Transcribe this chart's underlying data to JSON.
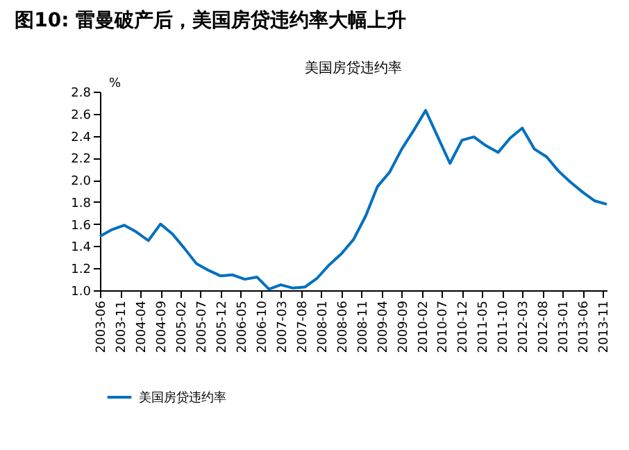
{
  "chart_data": {
    "type": "line",
    "title": "图10: 雷曼破产后，美国房贷违约率大幅上升",
    "subtitle": "美国房贷违约率",
    "ylabel": "%",
    "x": [
      "2003-06",
      "2003-09",
      "2003-12",
      "2004-03",
      "2004-06",
      "2004-09",
      "2004-12",
      "2005-03",
      "2005-06",
      "2005-09",
      "2005-12",
      "2006-03",
      "2006-06",
      "2006-09",
      "2006-12",
      "2007-03",
      "2007-06",
      "2007-09",
      "2007-12",
      "2008-03",
      "2008-06",
      "2008-09",
      "2008-12",
      "2009-03",
      "2009-06",
      "2009-09",
      "2009-12",
      "2010-03",
      "2010-06",
      "2010-09",
      "2010-12",
      "2011-03",
      "2011-06",
      "2011-09",
      "2011-12",
      "2012-03",
      "2012-06",
      "2012-09",
      "2012-12",
      "2013-03",
      "2013-06",
      "2013-09",
      "2013-12"
    ],
    "series": [
      {
        "name": "美国房贷违约率",
        "color": "#0070c0",
        "values": [
          1.49,
          1.55,
          1.59,
          1.53,
          1.45,
          1.6,
          1.51,
          1.38,
          1.24,
          1.18,
          1.13,
          1.14,
          1.1,
          1.12,
          1.01,
          1.05,
          1.02,
          1.03,
          1.11,
          1.23,
          1.33,
          1.46,
          1.67,
          1.94,
          2.07,
          2.28,
          2.45,
          2.63,
          2.39,
          2.15,
          2.36,
          2.39,
          2.31,
          2.25,
          2.38,
          2.47,
          2.28,
          2.21,
          2.08,
          1.98,
          1.89,
          1.81,
          1.78
        ]
      }
    ],
    "xlim": [
      "2003-06",
      "2013-12"
    ],
    "xticks": [
      "2003-06",
      "2003-11",
      "2004-04",
      "2004-09",
      "2005-02",
      "2005-07",
      "2005-12",
      "2006-05",
      "2006-10",
      "2007-03",
      "2007-08",
      "2008-01",
      "2008-06",
      "2008-11",
      "2009-04",
      "2009-09",
      "2010-02",
      "2010-07",
      "2010-12",
      "2011-05",
      "2011-10",
      "2012-03",
      "2012-08",
      "2013-01",
      "2013-06",
      "2013-11"
    ],
    "ylim": [
      1.0,
      2.8
    ],
    "yticks": [
      {
        "value": 1.0,
        "label": "1.0"
      },
      1.2,
      1.4,
      1.6,
      1.8,
      {
        "value": 2.0,
        "label": "2.0"
      },
      2.2,
      2.4,
      2.6,
      2.8
    ],
    "grid": false,
    "legend": "bottom",
    "marker": "none",
    "line_style": "solid"
  }
}
